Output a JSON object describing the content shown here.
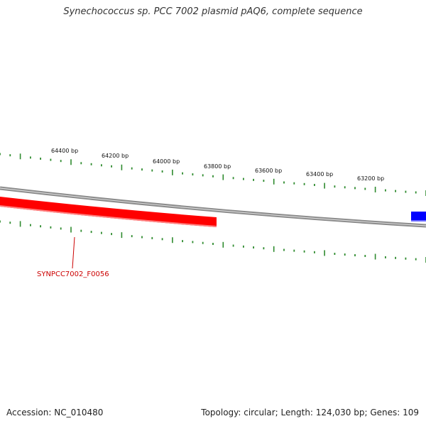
{
  "title": "Synechococcus sp. PCC 7002 plasmid pAQ6, complete sequence",
  "footer": {
    "accession": "Accession: NC_010480",
    "summary": "Topology: circular; Length: 124,030 bp; Genes: 109"
  },
  "colors": {
    "backbone": "#8a8a8a",
    "ticks": "#2e8b2e",
    "gene_forward": "#ff0000",
    "gene_reverse": "#0000ff",
    "gene_label": "#cc0000"
  },
  "scale_labels": [
    "64400 bp",
    "64200 bp",
    "64000 bp",
    "63800 bp",
    "63600 bp",
    "63400 bp",
    "63200 bp"
  ],
  "genes": [
    {
      "label": "SYNPCC7002_F0056",
      "strand": "forward",
      "color": "red"
    },
    {
      "label": "",
      "strand": "reverse",
      "color": "blue"
    }
  ]
}
